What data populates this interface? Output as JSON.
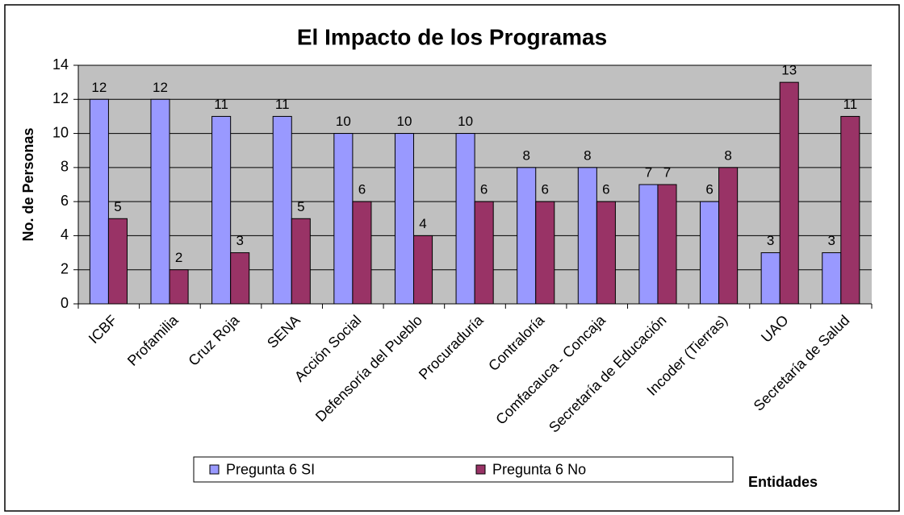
{
  "chart_data": {
    "type": "bar",
    "title": "El Impacto de los Programas",
    "y_label": "No. de Personas",
    "x_label": "Entidades",
    "categories": [
      "ICBF",
      "Profamilia",
      "Cruz Roja",
      "SENA",
      "Acción Social",
      "Defensoría del Pueblo",
      "Procuraduría",
      "Contraloría",
      "Comfacauca - Concaja",
      "Secretaría de Educación",
      "Incoder (Tierras)",
      "UAO",
      "Secretaría de Salud"
    ],
    "series": [
      {
        "name": "Pregunta 6 SI",
        "color": "#9999ff",
        "values": [
          12,
          12,
          11,
          11,
          10,
          10,
          10,
          8,
          8,
          7,
          6,
          3,
          3
        ]
      },
      {
        "name": "Pregunta 6 No",
        "color": "#993366",
        "values": [
          5,
          2,
          3,
          5,
          6,
          4,
          6,
          6,
          6,
          7,
          8,
          13,
          11
        ]
      }
    ],
    "ylim": [
      0,
      14
    ],
    "yticks": [
      0,
      2,
      4,
      6,
      8,
      10,
      12,
      14
    ],
    "grid": true,
    "legend": "bottom"
  }
}
